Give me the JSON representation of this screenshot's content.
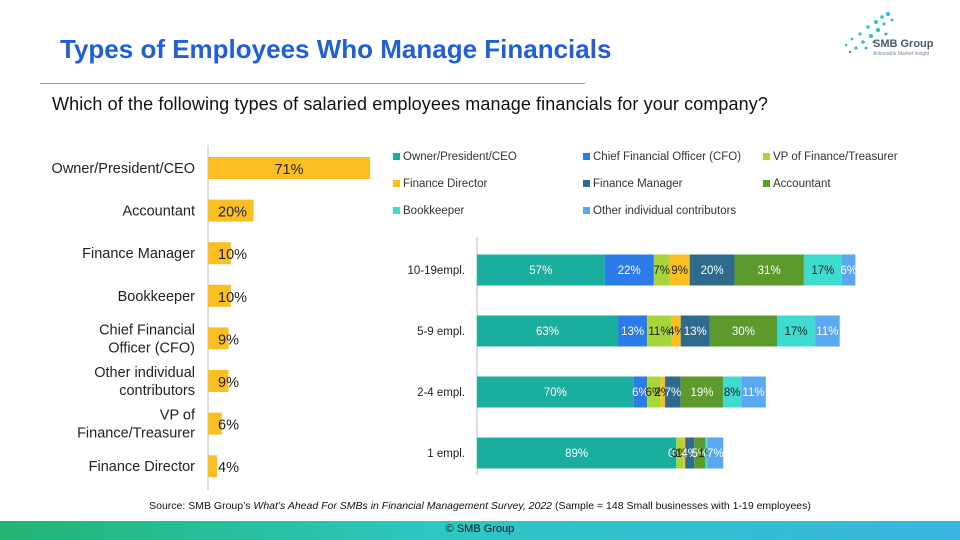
{
  "header": {
    "title": "Types of Employees Who Manage Financials",
    "question": "Which of the following types of salaried employees manage financials for your company?",
    "logo_text": "SMB Group",
    "logo_tagline": "Actionable Market Insight"
  },
  "source": {
    "prefix": "Source: SMB Group’s ",
    "italic": "What’s Ahead For SMBs in Financial Management Survey, 2022 ",
    "suffix": "(Sample = 148 Small businesses with 1-19 employees)"
  },
  "footer": {
    "text": "© SMB Group"
  },
  "colors": {
    "title": "#1F5FD9",
    "bar_left": "#FBBF24",
    "owner": "#1AAE9F",
    "cfo": "#2B7BE8",
    "vp": "#A6D63A",
    "fin_director": "#FBBF24",
    "fin_manager": "#2E6B8C",
    "accountant": "#5C9A2E",
    "bookkeeper": "#3DDBD0",
    "other": "#5AA8F0"
  },
  "chart_data": [
    {
      "type": "bar",
      "orientation": "horizontal",
      "categories": [
        "Owner/President/CEO",
        "Accountant",
        "Finance Manager",
        "Bookkeeper",
        "Chief Financial Officer (CFO)",
        "Other individual contributors",
        "VP of Finance/Treasurer",
        "Finance Director"
      ],
      "values": [
        71,
        20,
        10,
        10,
        9,
        9,
        6,
        4
      ],
      "labels": [
        "71%",
        "20%",
        "10%",
        "10%",
        "9%",
        "9%",
        "6%",
        "4%"
      ],
      "xlim": [
        0,
        100
      ]
    },
    {
      "type": "bar",
      "orientation": "horizontal",
      "stacked": true,
      "categories": [
        "10-19empl.",
        "5-9 empl.",
        "2-4 empl.",
        "1 empl."
      ],
      "legend_position": "top",
      "series": [
        {
          "name": "Owner/President/CEO",
          "color_key": "owner",
          "values": [
            57,
            63,
            70,
            89
          ],
          "labels": [
            "57%",
            "63%",
            "70%",
            "89%"
          ]
        },
        {
          "name": "Chief Financial Officer (CFO)",
          "color_key": "cfo",
          "values": [
            22,
            13,
            6,
            0
          ],
          "labels": [
            "22%",
            "13%",
            "6%",
            "0%"
          ]
        },
        {
          "name": "VP of Finance/Treasurer",
          "color_key": "vp",
          "values": [
            7,
            11,
            6,
            3
          ],
          "labels": [
            "7%",
            "11%",
            "6%",
            "3%"
          ]
        },
        {
          "name": "Finance Director",
          "color_key": "fin_director",
          "values": [
            9,
            4,
            2,
            1
          ],
          "labels": [
            "9%",
            "4%",
            "2%",
            "1%"
          ]
        },
        {
          "name": "Finance Manager",
          "color_key": "fin_manager",
          "values": [
            20,
            13,
            7,
            4
          ],
          "labels": [
            "20%",
            "13%",
            "7%",
            "4%"
          ]
        },
        {
          "name": "Accountant",
          "color_key": "accountant",
          "values": [
            31,
            30,
            19,
            5
          ],
          "labels": [
            "31%",
            "30%",
            "19%",
            "5%"
          ]
        },
        {
          "name": "Bookkeeper",
          "color_key": "bookkeeper",
          "values": [
            17,
            17,
            8,
            1
          ],
          "labels": [
            "17%",
            "17%",
            "8%",
            "1%"
          ]
        },
        {
          "name": "Other individual contributors",
          "color_key": "other",
          "values": [
            6,
            11,
            11,
            7
          ],
          "labels": [
            "6%",
            "11%",
            "11%",
            "7%"
          ]
        }
      ],
      "xlim": [
        0,
        180
      ]
    }
  ]
}
